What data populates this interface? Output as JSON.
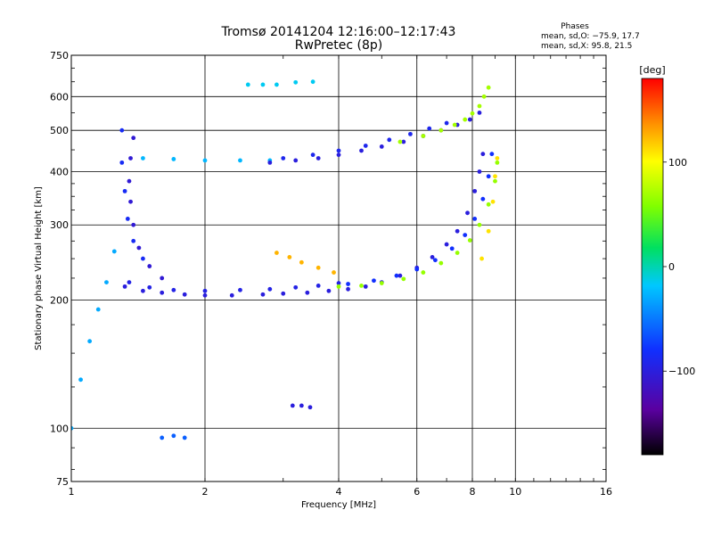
{
  "chart_data": {
    "type": "scatter",
    "title": "Tromsø 20141204 12:16:00–12:17:43",
    "subtitle": "RwPretec (8p)",
    "xlabel": "Frequency [MHz]",
    "ylabel": "Stationary phase Virtual Height [km]",
    "x_scale": "log",
    "y_scale": "log",
    "xlim": [
      1,
      16
    ],
    "ylim": [
      75,
      750
    ],
    "x_ticks": [
      1,
      2,
      4,
      6,
      8,
      10,
      16
    ],
    "x_tick_labels": [
      "1",
      "2",
      "4",
      "6",
      "8",
      "10",
      "16"
    ],
    "y_ticks": [
      75,
      100,
      200,
      300,
      400,
      500,
      600,
      750
    ],
    "y_tick_labels": [
      "75",
      "100",
      "200",
      "300",
      "400",
      "500",
      "600",
      "750"
    ],
    "grid": true,
    "stats": {
      "heading": "Phases",
      "lines": [
        "mean, sd,O: −75.9, 17.7",
        "mean, sd,X:  95.8, 21.5"
      ]
    },
    "colorbar": {
      "label": "[deg]",
      "range": [
        -180,
        180
      ],
      "ticks": [
        100,
        0,
        -100
      ],
      "tick_labels": [
        "100",
        "0",
        "−100"
      ]
    },
    "series": [
      {
        "encoding": "phase",
        "traces": [
          {
            "points": [
              [
                1.32,
                215
              ],
              [
                1.45,
                210
              ],
              [
                1.6,
                208
              ],
              [
                1.8,
                206
              ],
              [
                2.0,
                205
              ],
              [
                2.3,
                205
              ],
              [
                2.7,
                206
              ],
              [
                3.0,
                207
              ],
              [
                3.4,
                208
              ],
              [
                3.8,
                210
              ],
              [
                4.2,
                212
              ],
              [
                4.6,
                215
              ],
              [
                5.0,
                220
              ],
              [
                5.5,
                228
              ],
              [
                6.0,
                238
              ],
              [
                6.5,
                252
              ],
              [
                7.0,
                270
              ],
              [
                7.4,
                290
              ],
              [
                7.8,
                320
              ],
              [
                8.1,
                360
              ],
              [
                8.3,
                400
              ],
              [
                8.45,
                440
              ]
            ],
            "phase": -100
          },
          {
            "points": [
              [
                1.35,
                220
              ],
              [
                1.5,
                214
              ],
              [
                1.7,
                211
              ],
              [
                2.0,
                210
              ],
              [
                2.4,
                211
              ],
              [
                2.8,
                212
              ],
              [
                3.2,
                214
              ],
              [
                3.6,
                216
              ],
              [
                4.0,
                219
              ]
            ],
            "phase": -95
          },
          {
            "points": [
              [
                4.2,
                218
              ],
              [
                4.8,
                222
              ],
              [
                5.4,
                228
              ],
              [
                6.0,
                236
              ],
              [
                6.6,
                248
              ],
              [
                7.2,
                264
              ],
              [
                7.7,
                284
              ],
              [
                8.1,
                310
              ],
              [
                8.45,
                345
              ],
              [
                8.7,
                390
              ],
              [
                8.85,
                440
              ]
            ],
            "phase": -80
          },
          {
            "points": [
              [
                4.0,
                215
              ],
              [
                4.5,
                216
              ],
              [
                5.0,
                219
              ],
              [
                5.6,
                224
              ],
              [
                6.2,
                232
              ],
              [
                6.8,
                244
              ],
              [
                7.4,
                258
              ],
              [
                7.9,
                276
              ],
              [
                8.3,
                300
              ],
              [
                8.7,
                335
              ],
              [
                9.0,
                380
              ],
              [
                9.1,
                420
              ]
            ],
            "phase": 65
          },
          {
            "points": [
              [
                8.4,
                250
              ],
              [
                8.7,
                290
              ],
              [
                8.9,
                340
              ],
              [
                9.0,
                390
              ],
              [
                9.1,
                430
              ]
            ],
            "phase": 110
          },
          {
            "points": [
              [
                2.9,
                258
              ],
              [
                3.1,
                252
              ],
              [
                3.3,
                245
              ],
              [
                3.6,
                238
              ],
              [
                3.9,
                232
              ]
            ],
            "phase": 125
          },
          {
            "points": [
              [
                1.38,
                480
              ],
              [
                1.36,
                430
              ],
              [
                1.35,
                380
              ],
              [
                1.36,
                340
              ],
              [
                1.38,
                300
              ],
              [
                1.42,
                265
              ],
              [
                1.5,
                240
              ],
              [
                1.6,
                225
              ]
            ],
            "phase": -105
          },
          {
            "points": [
              [
                1.3,
                500
              ],
              [
                1.3,
                420
              ],
              [
                1.32,
                360
              ],
              [
                1.34,
                310
              ],
              [
                1.38,
                275
              ],
              [
                1.45,
                250
              ]
            ],
            "phase": -85
          },
          {
            "points": [
              [
                1.45,
                430
              ],
              [
                1.7,
                428
              ],
              [
                2.0,
                425
              ],
              [
                2.4,
                425
              ],
              [
                2.8,
                425
              ]
            ],
            "phase": -25
          },
          {
            "points": [
              [
                2.8,
                420
              ],
              [
                3.2,
                425
              ],
              [
                3.6,
                430
              ],
              [
                4.0,
                438
              ],
              [
                4.5,
                448
              ],
              [
                5.0,
                458
              ],
              [
                5.6,
                470
              ],
              [
                6.2,
                485
              ],
              [
                6.8,
                500
              ],
              [
                7.4,
                515
              ],
              [
                7.9,
                530
              ],
              [
                8.3,
                550
              ]
            ],
            "phase": -100
          },
          {
            "points": [
              [
                3.0,
                430
              ],
              [
                3.5,
                438
              ],
              [
                4.0,
                448
              ],
              [
                4.6,
                460
              ],
              [
                5.2,
                475
              ],
              [
                5.8,
                490
              ],
              [
                6.4,
                505
              ],
              [
                7.0,
                520
              ]
            ],
            "phase": -90
          },
          {
            "points": [
              [
                5.5,
                470
              ],
              [
                6.2,
                485
              ],
              [
                6.8,
                500
              ],
              [
                7.3,
                515
              ],
              [
                7.7,
                530
              ],
              [
                8.0,
                548
              ],
              [
                8.3,
                570
              ],
              [
                8.5,
                600
              ],
              [
                8.7,
                630
              ]
            ],
            "phase": 70
          },
          {
            "points": [
              [
                1.0,
                100
              ],
              [
                1.05,
                130
              ],
              [
                1.1,
                160
              ],
              [
                1.15,
                190
              ],
              [
                1.2,
                220
              ],
              [
                1.25,
                260
              ]
            ],
            "phase": -30
          },
          {
            "points": [
              [
                2.5,
                640
              ],
              [
                2.7,
                640
              ],
              [
                2.9,
                640
              ],
              [
                3.2,
                648
              ],
              [
                3.5,
                650
              ]
            ],
            "phase": -15
          },
          {
            "points": [
              [
                1.6,
                95
              ],
              [
                1.7,
                96
              ],
              [
                1.8,
                95
              ]
            ],
            "phase": -60
          },
          {
            "points": [
              [
                3.15,
                113
              ],
              [
                3.3,
                113
              ],
              [
                3.45,
                112
              ]
            ],
            "phase": -100
          }
        ]
      }
    ]
  }
}
